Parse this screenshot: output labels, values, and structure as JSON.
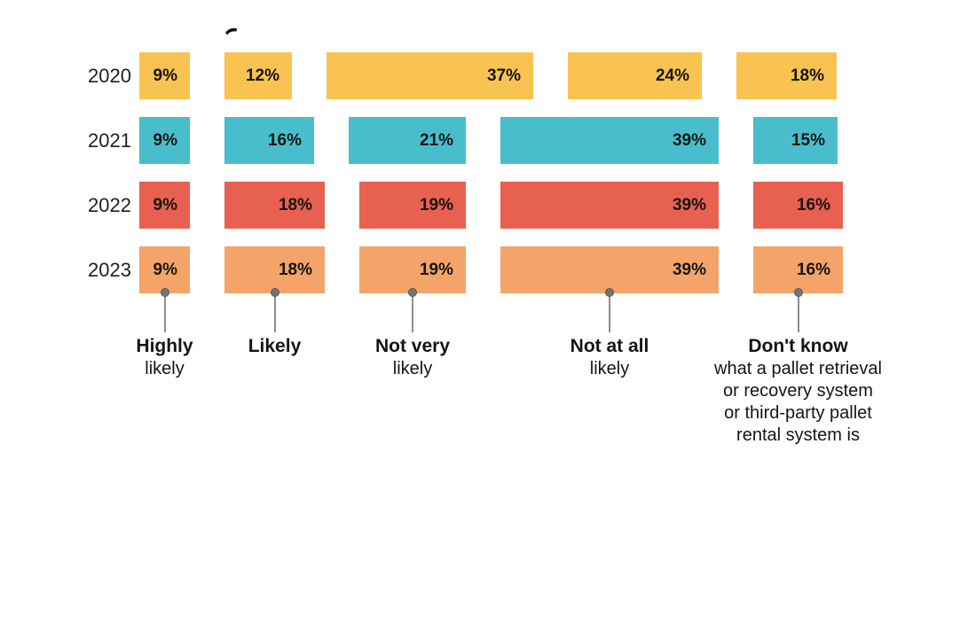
{
  "chart_data": {
    "type": "bar",
    "variant": "horizontal-proportional-segments",
    "orientation": "horizontal",
    "unit": "%",
    "grid": false,
    "legend_position": "none",
    "background": "#ffffff",
    "text_color": "#151515",
    "connector_color": "#8f8f8f",
    "dot_color": "#757575",
    "dot_border_color": "#585858",
    "categories": [
      {
        "label": "Highly",
        "sublabel": "likely"
      },
      {
        "label": "Likely",
        "sublabel": ""
      },
      {
        "label": "Not very",
        "sublabel": "likely"
      },
      {
        "label": "Not at all",
        "sublabel": "likely"
      },
      {
        "label": "Don't know",
        "sublabel": "what a pallet retrieval\nor recovery system\nor third-party pallet\nrental system is"
      }
    ],
    "series": [
      {
        "name": "2020",
        "color": "#F8C350",
        "values": [
          9,
          12,
          37,
          24,
          18
        ]
      },
      {
        "name": "2021",
        "color": "#48BECC",
        "values": [
          9,
          16,
          21,
          39,
          15
        ]
      },
      {
        "name": "2022",
        "color": "#E8604F",
        "values": [
          9,
          18,
          19,
          39,
          16
        ]
      },
      {
        "name": "2023",
        "color": "#F4A468",
        "values": [
          9,
          18,
          19,
          39,
          16
        ]
      }
    ],
    "decor": {
      "cropped_title_fragment": "letter-descender-fragment"
    }
  }
}
